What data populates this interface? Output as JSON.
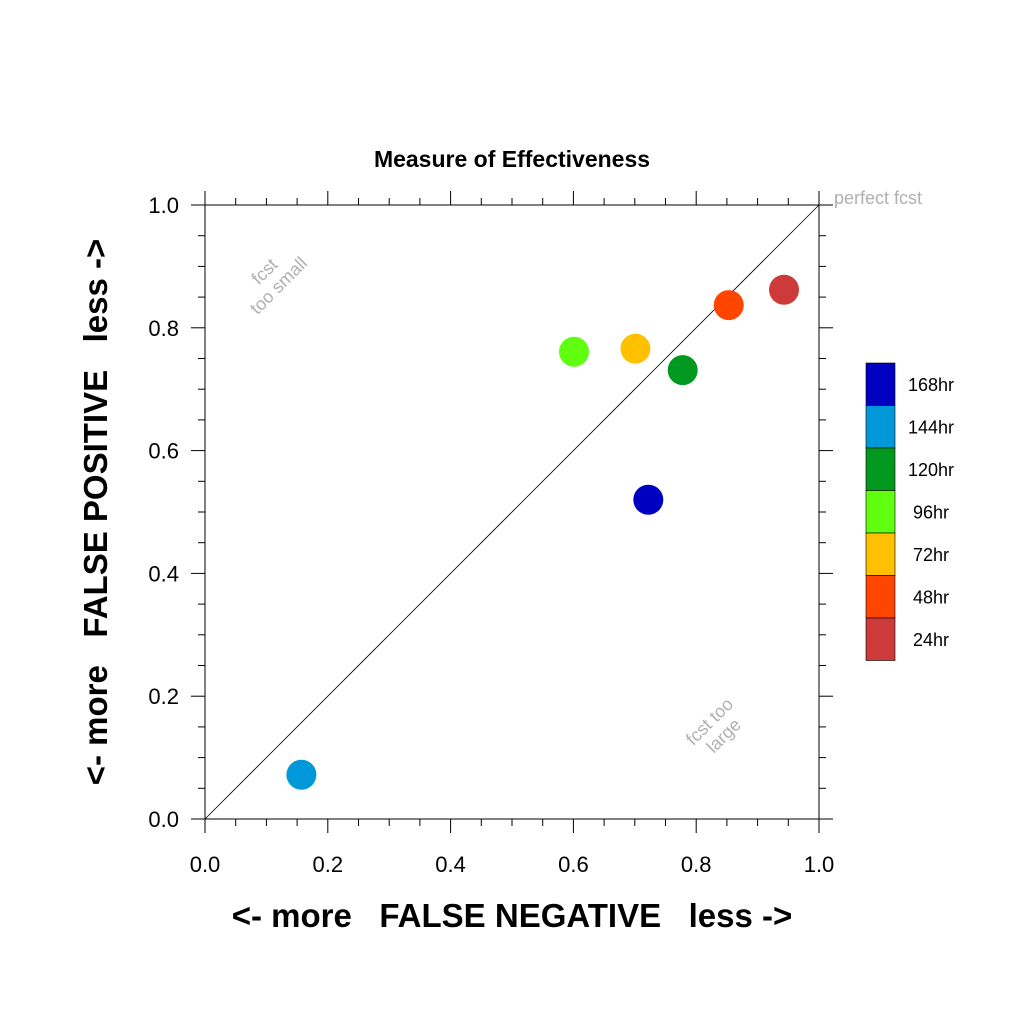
{
  "chart_data": {
    "type": "scatter",
    "title": "Measure of Effectiveness",
    "xlabel": "<- more   FALSE NEGATIVE   less ->",
    "ylabel": "<- more   FALSE POSITIVE   less ->",
    "xlim": [
      0.0,
      1.0
    ],
    "ylim": [
      0.0,
      1.0
    ],
    "xticks": [
      "0.0",
      "0.2",
      "0.4",
      "0.6",
      "0.8",
      "1.0"
    ],
    "yticks": [
      "0.0",
      "0.2",
      "0.4",
      "0.6",
      "0.8",
      "1.0"
    ],
    "grid": false,
    "reference_line": {
      "from": [
        0,
        0
      ],
      "to": [
        1,
        1
      ]
    },
    "annotations": {
      "perfect": "perfect fcst",
      "too_small_line1": "fcst",
      "too_small_line2": "too small",
      "too_large_line1": "fcst too",
      "too_large_line2": "large"
    },
    "legend_position": "right",
    "series": [
      {
        "name": "168hr",
        "color": "#0000c0",
        "x": 0.722,
        "y": 0.52
      },
      {
        "name": "144hr",
        "color": "#0098d8",
        "x": 0.157,
        "y": 0.072
      },
      {
        "name": "120hr",
        "color": "#00981e",
        "x": 0.778,
        "y": 0.731
      },
      {
        "name": "96hr",
        "color": "#60ff10",
        "x": 0.601,
        "y": 0.761
      },
      {
        "name": "72hr",
        "color": "#ffc000",
        "x": 0.701,
        "y": 0.766
      },
      {
        "name": "48hr",
        "color": "#ff4600",
        "x": 0.853,
        "y": 0.837
      },
      {
        "name": "24hr",
        "color": "#cc3a3a",
        "x": 0.943,
        "y": 0.862
      }
    ]
  }
}
